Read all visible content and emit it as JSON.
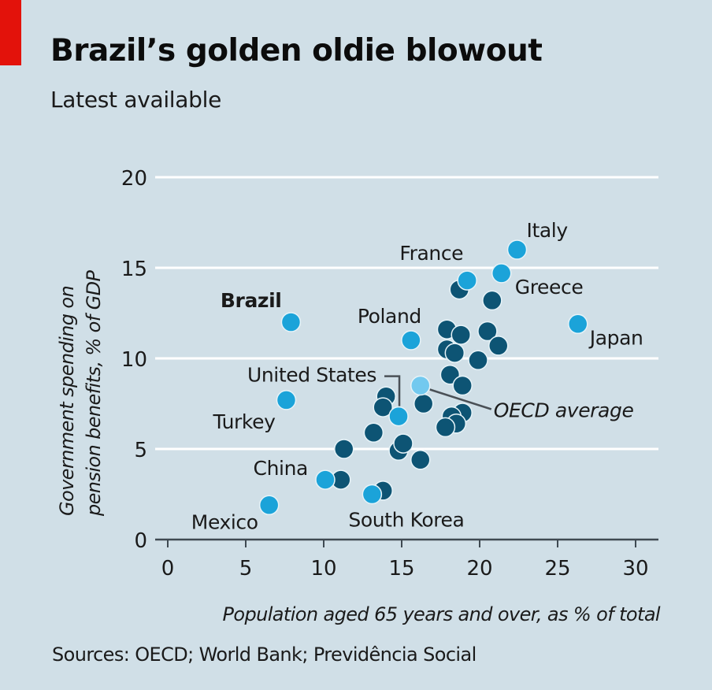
{
  "header": {
    "title": "Brazil’s golden oldie blowout",
    "subtitle": "Latest available"
  },
  "footer": {
    "source": "Sources: OECD; World Bank; Previdência Social"
  },
  "colors": {
    "background": "#d0dfe7",
    "accent_tag": "#e3120b",
    "highlight_dot": "#1ba3d9",
    "oecd_dot": "#72c9ef",
    "other_dot": "#0d5474",
    "dot_outline": "#e6f3f8",
    "gridline": "#ffffff",
    "axis": "#3f4a52",
    "leader_line": "#4a5056"
  },
  "chart_data": {
    "type": "scatter",
    "title": "Brazil’s golden oldie blowout",
    "subtitle": "Latest available",
    "xlabel": "Population aged 65 years and over, as % of total",
    "ylabel": "Government spending on pension benefits, % of GDP",
    "ylabel_lines": [
      "Government spending on",
      "pension benefits, % of GDP"
    ],
    "xlim": [
      -0.8,
      31.5
    ],
    "ylim": [
      0,
      20
    ],
    "xticks": [
      0,
      5,
      10,
      15,
      20,
      25,
      30
    ],
    "yticks": [
      0,
      5,
      10,
      15,
      20
    ],
    "grid": "horizontal",
    "source": "Sources: OECD; World Bank; Previdência Social",
    "labelled_points": [
      {
        "name": "Brazil",
        "x": 7.9,
        "y": 12.0,
        "kind": "highlight",
        "label_style": "bold"
      },
      {
        "name": "Turkey",
        "x": 7.6,
        "y": 7.7,
        "kind": "highlight"
      },
      {
        "name": "Mexico",
        "x": 6.5,
        "y": 1.9,
        "kind": "highlight"
      },
      {
        "name": "China",
        "x": 10.1,
        "y": 3.3,
        "kind": "highlight"
      },
      {
        "name": "South Korea",
        "x": 13.1,
        "y": 2.5,
        "kind": "highlight"
      },
      {
        "name": "United States",
        "x": 14.8,
        "y": 6.8,
        "kind": "highlight"
      },
      {
        "name": "Poland",
        "x": 15.6,
        "y": 11.0,
        "kind": "highlight"
      },
      {
        "name": "OECD average",
        "x": 16.2,
        "y": 8.5,
        "kind": "oecd",
        "label_style": "italic"
      },
      {
        "name": "France",
        "x": 19.2,
        "y": 14.3,
        "kind": "highlight"
      },
      {
        "name": "Greece",
        "x": 21.4,
        "y": 14.7,
        "kind": "highlight"
      },
      {
        "name": "Italy",
        "x": 22.4,
        "y": 16.0,
        "kind": "highlight"
      },
      {
        "name": "Japan",
        "x": 26.3,
        "y": 11.9,
        "kind": "highlight"
      }
    ],
    "other_points": [
      {
        "x": 11.1,
        "y": 3.3
      },
      {
        "x": 11.3,
        "y": 5.0
      },
      {
        "x": 13.2,
        "y": 5.9
      },
      {
        "x": 13.8,
        "y": 2.7
      },
      {
        "x": 14.0,
        "y": 7.9
      },
      {
        "x": 13.8,
        "y": 7.3
      },
      {
        "x": 14.8,
        "y": 4.9
      },
      {
        "x": 15.1,
        "y": 5.3
      },
      {
        "x": 16.2,
        "y": 4.4
      },
      {
        "x": 16.4,
        "y": 7.5
      },
      {
        "x": 18.7,
        "y": 13.8
      },
      {
        "x": 20.8,
        "y": 13.2
      },
      {
        "x": 17.9,
        "y": 11.6
      },
      {
        "x": 18.8,
        "y": 11.3
      },
      {
        "x": 20.5,
        "y": 11.5
      },
      {
        "x": 17.9,
        "y": 10.5
      },
      {
        "x": 18.4,
        "y": 10.3
      },
      {
        "x": 21.2,
        "y": 10.7
      },
      {
        "x": 19.9,
        "y": 9.9
      },
      {
        "x": 18.1,
        "y": 9.1
      },
      {
        "x": 18.9,
        "y": 8.5
      },
      {
        "x": 18.9,
        "y": 7.0
      },
      {
        "x": 18.2,
        "y": 6.8
      },
      {
        "x": 18.5,
        "y": 6.4
      },
      {
        "x": 17.8,
        "y": 6.2
      }
    ]
  }
}
